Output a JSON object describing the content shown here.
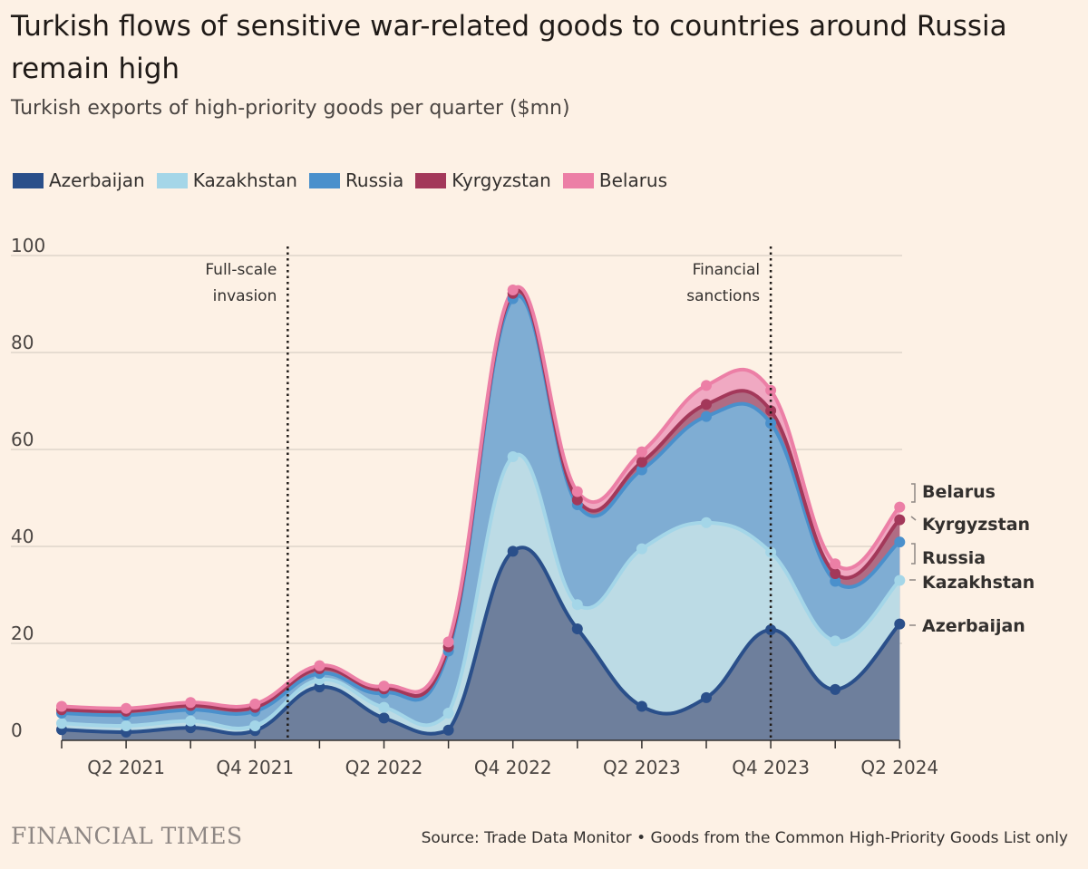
{
  "title": "Turkish flows of sensitive war-related goods to countries around Russia remain high",
  "subtitle": "Turkish exports of high-priority goods per quarter ($mn)",
  "source": "Source: Trade Data Monitor • Goods from the Common High-Priority Goods List only",
  "brand": "FINANCIAL TIMES",
  "colors": {
    "background": "#fdf1e5",
    "Azerbaijan": "#2a4f8a",
    "Kazakhstan": "#a4d6e8",
    "Russia": "#4a90cc",
    "Kyrgyzstan": "#a3385a",
    "Belarus": "#ec7fa6"
  },
  "chart_data": {
    "type": "area",
    "stacked": true,
    "x": [
      "Q1 2021",
      "Q2 2021",
      "Q3 2021",
      "Q4 2021",
      "Q1 2022",
      "Q2 2022",
      "Q3 2022",
      "Q4 2022",
      "Q1 2023",
      "Q2 2023",
      "Q3 2023",
      "Q4 2023",
      "Q1 2024",
      "Q2 2024"
    ],
    "x_tick_labels": [
      "Q2 2021",
      "Q4 2021",
      "Q2 2022",
      "Q4 2022",
      "Q2 2023",
      "Q4 2023",
      "Q2 2024"
    ],
    "ylim": [
      0,
      100
    ],
    "y_ticks": [
      0,
      20,
      40,
      60,
      80,
      100
    ],
    "grid": true,
    "legend_placement": "top-left",
    "series_cumulative": [
      {
        "name": "Azerbaijan",
        "values": [
          2.2,
          1.7,
          2.6,
          2.0,
          11.0,
          4.6,
          2.1,
          39.0,
          23.0,
          7.0,
          8.8,
          22.8,
          10.5,
          24.0
        ]
      },
      {
        "name": "Kazakhstan",
        "values": [
          3.5,
          3.0,
          4.0,
          3.0,
          12.5,
          6.8,
          5.6,
          58.5,
          28.0,
          39.5,
          44.9,
          38.8,
          20.5,
          33.0
        ]
      },
      {
        "name": "Russia",
        "values": [
          5.6,
          5.2,
          6.3,
          6.0,
          13.8,
          9.8,
          18.4,
          91.1,
          48.6,
          55.8,
          66.8,
          65.4,
          32.8,
          40.9
        ]
      },
      {
        "name": "Kyrgyzstan",
        "values": [
          6.3,
          6.0,
          7.2,
          6.8,
          14.8,
          10.6,
          19.3,
          92.2,
          49.6,
          57.4,
          69.3,
          68.0,
          34.4,
          45.5
        ]
      },
      {
        "name": "Belarus",
        "values": [
          7.0,
          6.6,
          7.8,
          7.5,
          15.4,
          11.2,
          20.3,
          92.9,
          51.3,
          59.5,
          73.2,
          72.2,
          36.4,
          48.1
        ]
      }
    ],
    "annotations": [
      {
        "at": "Q4 2021/Q1 2022",
        "text_lines": [
          "Full-scale",
          "invasion"
        ]
      },
      {
        "at": "Q4 2023",
        "text_lines": [
          "Financial",
          "sanctions"
        ]
      }
    ],
    "end_labels": [
      "Belarus",
      "Kyrgyzstan",
      "Russia",
      "Kazakhstan",
      "Azerbaijan"
    ]
  }
}
